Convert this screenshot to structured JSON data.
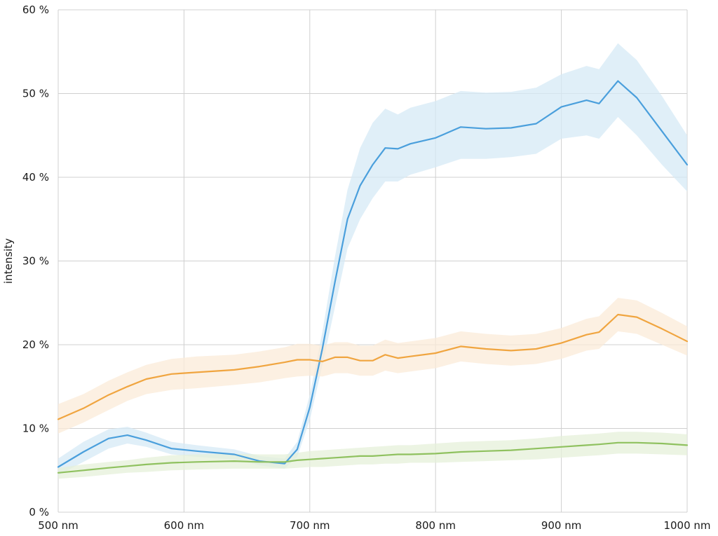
{
  "chart_data": {
    "type": "line",
    "title": "",
    "xlabel": "",
    "ylabel": "intensity",
    "xlim": [
      500,
      1000
    ],
    "ylim": [
      0,
      60
    ],
    "x_unit": "nm",
    "y_unit": "%",
    "x_ticks": [
      500,
      600,
      700,
      800,
      900,
      1000
    ],
    "x_tick_labels": [
      "500 nm",
      "600 nm",
      "700 nm",
      "800 nm",
      "900 nm",
      "1000 nm"
    ],
    "y_ticks": [
      0,
      10,
      20,
      30,
      40,
      50,
      60
    ],
    "y_tick_labels": [
      "0 %",
      "10 %",
      "20 %",
      "30 %",
      "40 %",
      "50 %",
      "60 %"
    ],
    "grid": true,
    "legend": "none",
    "x": [
      500,
      520,
      540,
      555,
      570,
      590,
      610,
      640,
      660,
      680,
      690,
      700,
      710,
      720,
      730,
      740,
      750,
      760,
      770,
      780,
      800,
      820,
      840,
      860,
      880,
      900,
      920,
      930,
      945,
      960,
      980,
      1000
    ],
    "series": [
      {
        "color": "#4a9fdc",
        "band_color": "#d6e9f6",
        "values": [
          5.4,
          7.2,
          8.8,
          9.2,
          8.6,
          7.6,
          7.3,
          6.9,
          6.1,
          5.8,
          7.5,
          12.5,
          19.5,
          27.5,
          35,
          39,
          41.5,
          43.5,
          43.4,
          44,
          44.7,
          46,
          45.8,
          45.9,
          46.4,
          48.4,
          49.2,
          48.8,
          51.5,
          49.5,
          45.5,
          41.5
        ],
        "lower": [
          4.4,
          6.0,
          7.6,
          8.2,
          7.8,
          6.9,
          6.6,
          6.3,
          5.6,
          5.2,
          6.6,
          11.0,
          17.5,
          24.5,
          31.5,
          35,
          37.5,
          39.5,
          39.5,
          40.3,
          41.2,
          42.2,
          42.2,
          42.4,
          42.8,
          44.6,
          45,
          44.6,
          47.2,
          45,
          41.5,
          38.3
        ],
        "upper": [
          6.4,
          8.4,
          9.9,
          10.2,
          9.5,
          8.4,
          8.0,
          7.5,
          6.7,
          6.4,
          8.4,
          14.0,
          21.5,
          30.5,
          38.5,
          43.5,
          46.5,
          48.2,
          47.5,
          48.3,
          49.1,
          50.3,
          50.1,
          50.2,
          50.7,
          52.3,
          53.3,
          52.9,
          56.0,
          54.0,
          49.7,
          45.0
        ]
      },
      {
        "color": "#f0a540",
        "band_color": "#fbebd8",
        "values": [
          11.1,
          12.4,
          14.0,
          15.0,
          15.9,
          16.5,
          16.7,
          17.0,
          17.4,
          17.9,
          18.2,
          18.2,
          18.0,
          18.5,
          18.5,
          18.1,
          18.1,
          18.8,
          18.4,
          18.6,
          19.0,
          19.8,
          19.5,
          19.3,
          19.5,
          20.2,
          21.2,
          21.5,
          23.6,
          23.3,
          21.9,
          20.4
        ],
        "lower": [
          9.4,
          10.7,
          12.2,
          13.3,
          14.1,
          14.6,
          14.8,
          15.2,
          15.5,
          16.0,
          16.2,
          16.3,
          16.2,
          16.6,
          16.6,
          16.3,
          16.3,
          16.9,
          16.6,
          16.8,
          17.2,
          18.0,
          17.7,
          17.5,
          17.7,
          18.3,
          19.3,
          19.5,
          21.6,
          21.3,
          20.0,
          18.7
        ],
        "upper": [
          12.9,
          14.1,
          15.7,
          16.7,
          17.6,
          18.3,
          18.6,
          18.8,
          19.2,
          19.7,
          20.1,
          20.1,
          19.9,
          20.3,
          20.3,
          19.9,
          19.9,
          20.6,
          20.2,
          20.4,
          20.8,
          21.6,
          21.3,
          21.1,
          21.3,
          22.0,
          23.1,
          23.4,
          25.6,
          25.3,
          23.8,
          22.2
        ]
      },
      {
        "color": "#8fc15f",
        "band_color": "#e6f0d9",
        "values": [
          4.7,
          5.0,
          5.3,
          5.5,
          5.7,
          5.9,
          6.0,
          6.1,
          6.0,
          6.0,
          6.2,
          6.3,
          6.4,
          6.5,
          6.6,
          6.7,
          6.7,
          6.8,
          6.9,
          6.9,
          7.0,
          7.2,
          7.3,
          7.4,
          7.6,
          7.8,
          8.0,
          8.1,
          8.3,
          8.3,
          8.2,
          8.0
        ],
        "lower": [
          4.0,
          4.2,
          4.5,
          4.7,
          4.8,
          5.0,
          5.1,
          5.2,
          5.2,
          5.2,
          5.3,
          5.4,
          5.4,
          5.5,
          5.6,
          5.7,
          5.7,
          5.8,
          5.8,
          5.9,
          5.9,
          6.0,
          6.1,
          6.2,
          6.3,
          6.5,
          6.7,
          6.8,
          7.0,
          7.0,
          6.9,
          6.8
        ],
        "upper": [
          5.3,
          5.7,
          6.0,
          6.2,
          6.5,
          6.8,
          6.9,
          7.0,
          6.9,
          6.9,
          7.1,
          7.3,
          7.4,
          7.5,
          7.6,
          7.7,
          7.8,
          7.9,
          8.0,
          8.0,
          8.2,
          8.4,
          8.5,
          8.6,
          8.8,
          9.1,
          9.3,
          9.4,
          9.6,
          9.6,
          9.5,
          9.3
        ]
      }
    ]
  }
}
